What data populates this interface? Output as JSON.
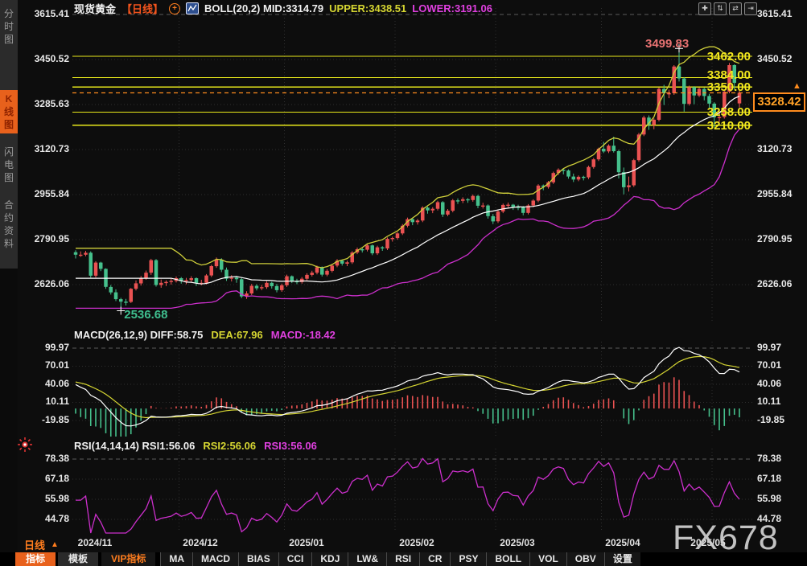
{
  "window": {
    "watermark": "FX678"
  },
  "colors": {
    "up": "#ea5252",
    "down": "#45c08c",
    "boll_upper": "#cfcf3a",
    "boll_mid": "#ffffff",
    "boll_lower": "#cc2fcc",
    "diff_line": "#ffffff",
    "dea_line": "#d6d632",
    "rsi_line": "#cc2fcc",
    "level_line": "#e8e81a",
    "level_label": "#f2e71e",
    "price_line": "#ff8c1e",
    "accent": "#e8611c",
    "text_orange": "#ff7d1e",
    "grid": "#2f2f2f",
    "grid_major": "#5c5c5c",
    "high_label": "#e87272",
    "low_label": "#3fbf8f"
  },
  "sidebar": {
    "tabs": [
      {
        "label": "分时图",
        "active": false
      },
      {
        "label": "K线图",
        "active": true
      },
      {
        "label": "闪电图",
        "active": false
      },
      {
        "label": "合约资料",
        "active": false
      }
    ]
  },
  "legend": {
    "symbol": "现货黄金",
    "period_tag": "【日线】",
    "add_icon_glyph": "+",
    "boll_text": "BOLL(20,2) MID:3314.79",
    "upper_text": "UPPER:3438.51",
    "lower_text": "LOWER:3191.06"
  },
  "top_icons": [
    {
      "name": "pan-tool-icon",
      "glyph": "✚"
    },
    {
      "name": "y-axis-zoom-icon",
      "glyph": "⇅"
    },
    {
      "name": "x-axis-zoom-icon",
      "glyph": "⇄"
    },
    {
      "name": "shift-right-icon",
      "glyph": "⇥"
    }
  ],
  "macd_legend": {
    "text": "MACD(26,12,9) DIFF:58.75",
    "dea_text": "DEA:67.96",
    "macd_text": "MACD:-18.42"
  },
  "rsi_legend": {
    "text": "RSI(14,14,14) RSI1:56.06",
    "rsi2_text": "RSI2:56.06",
    "rsi3_text": "RSI3:56.06"
  },
  "price_pointer": {
    "value": "3328.42",
    "arrow": "▲"
  },
  "period_selector": {
    "label": "日线",
    "arrow": "▲"
  },
  "bottom_toolbar": {
    "items": [
      {
        "label": "指标",
        "style": "primary"
      },
      {
        "label": "模板",
        "style": "secondary"
      },
      {
        "label": "VIP指标",
        "style": "vip"
      },
      {
        "label": "MA"
      },
      {
        "label": "MACD"
      },
      {
        "label": "BIAS"
      },
      {
        "label": "CCI"
      },
      {
        "label": "KDJ"
      },
      {
        "label": "LW&"
      },
      {
        "label": "RSI"
      },
      {
        "label": "CR"
      },
      {
        "label": "PSY"
      },
      {
        "label": "BOLL"
      },
      {
        "label": "VOL"
      },
      {
        "label": "OBV"
      },
      {
        "label": "设置"
      }
    ]
  },
  "chart_data": {
    "type": "candlestick",
    "symbol": "现货黄金",
    "period": "日线",
    "x_axis": {
      "labels": [
        "2024/11",
        "2024/12",
        "2025/01",
        "2025/02",
        "2025/03",
        "2025/04",
        "2025/05"
      ],
      "month_start_indices": [
        0,
        21,
        42,
        64,
        84,
        105,
        127
      ]
    },
    "panels": {
      "main": {
        "ticks": [
          3615.41,
          3450.52,
          3285.63,
          3120.73,
          2955.84,
          2790.95,
          2626.06
        ],
        "ylim": [
          2491,
          3639
        ]
      },
      "macd": {
        "ticks": [
          99.97,
          70.01,
          40.06,
          10.11,
          -19.85
        ],
        "ylim": [
          -46.5,
          110.6
        ]
      },
      "rsi": {
        "ticks": [
          78.38,
          67.18,
          55.98,
          44.78
        ],
        "ylim": [
          38.6,
          84.2
        ]
      }
    },
    "levels": [
      {
        "value": 3462,
        "label": "3462.00"
      },
      {
        "value": 3384,
        "label": "3384.00"
      },
      {
        "value": 3350,
        "label": "3350.00"
      },
      {
        "value": 3258,
        "label": "3258.00"
      },
      {
        "value": 3210,
        "label": "3210.00"
      }
    ],
    "current_price": 3328.42,
    "high_marker": {
      "index": 120,
      "price": 3499.83,
      "label": "3499.83"
    },
    "low_marker": {
      "index": 9,
      "price": 2536.68,
      "label": "2536.68"
    },
    "indicators": {
      "boll": {
        "period": 20,
        "mult": 2
      },
      "macd": {
        "fast": 12,
        "slow": 26,
        "signal": 9
      },
      "rsi": {
        "period": 14
      }
    },
    "candles": [
      [
        2745,
        2752,
        2722,
        2736
      ],
      [
        2736,
        2748,
        2728,
        2736
      ],
      [
        2736,
        2750,
        2730,
        2743
      ],
      [
        2743,
        2748,
        2652,
        2659
      ],
      [
        2659,
        2712,
        2652,
        2707
      ],
      [
        2707,
        2710,
        2676,
        2684
      ],
      [
        2684,
        2686,
        2611,
        2618
      ],
      [
        2618,
        2625,
        2590,
        2598
      ],
      [
        2598,
        2609,
        2566,
        2573
      ],
      [
        2573,
        2578,
        2537,
        2564
      ],
      [
        2564,
        2574,
        2550,
        2563
      ],
      [
        2563,
        2614,
        2559,
        2611
      ],
      [
        2611,
        2642,
        2605,
        2631
      ],
      [
        2631,
        2658,
        2623,
        2650
      ],
      [
        2650,
        2678,
        2644,
        2670
      ],
      [
        2670,
        2721,
        2662,
        2716
      ],
      [
        2716,
        2720,
        2619,
        2625
      ],
      [
        2625,
        2645,
        2615,
        2633
      ],
      [
        2633,
        2642,
        2621,
        2636
      ],
      [
        2636,
        2648,
        2626,
        2640
      ],
      [
        2640,
        2656,
        2634,
        2650
      ],
      [
        2650,
        2654,
        2630,
        2639
      ],
      [
        2639,
        2651,
        2628,
        2643
      ],
      [
        2643,
        2657,
        2636,
        2650
      ],
      [
        2650,
        2653,
        2621,
        2632
      ],
      [
        2632,
        2644,
        2624,
        2633
      ],
      [
        2633,
        2665,
        2627,
        2660
      ],
      [
        2660,
        2699,
        2654,
        2694
      ],
      [
        2694,
        2726,
        2688,
        2718
      ],
      [
        2718,
        2723,
        2672,
        2681
      ],
      [
        2681,
        2689,
        2640,
        2648
      ],
      [
        2648,
        2661,
        2638,
        2652
      ],
      [
        2652,
        2658,
        2633,
        2646
      ],
      [
        2646,
        2652,
        2577,
        2583
      ],
      [
        2583,
        2602,
        2574,
        2594
      ],
      [
        2594,
        2629,
        2588,
        2622
      ],
      [
        2622,
        2628,
        2605,
        2613
      ],
      [
        2613,
        2625,
        2606,
        2617
      ],
      [
        2617,
        2639,
        2611,
        2633
      ],
      [
        2633,
        2637,
        2612,
        2621
      ],
      [
        2621,
        2629,
        2598,
        2606
      ],
      [
        2606,
        2630,
        2600,
        2624
      ],
      [
        2624,
        2663,
        2618,
        2657
      ],
      [
        2657,
        2660,
        2632,
        2639
      ],
      [
        2639,
        2648,
        2628,
        2636
      ],
      [
        2636,
        2654,
        2630,
        2648
      ],
      [
        2648,
        2668,
        2642,
        2662
      ],
      [
        2662,
        2677,
        2656,
        2670
      ],
      [
        2670,
        2696,
        2664,
        2690
      ],
      [
        2690,
        2693,
        2656,
        2663
      ],
      [
        2663,
        2683,
        2657,
        2677
      ],
      [
        2677,
        2701,
        2671,
        2696
      ],
      [
        2696,
        2720,
        2690,
        2714
      ],
      [
        2714,
        2718,
        2696,
        2703
      ],
      [
        2703,
        2714,
        2694,
        2708
      ],
      [
        2708,
        2749,
        2702,
        2744
      ],
      [
        2744,
        2762,
        2738,
        2756
      ],
      [
        2756,
        2761,
        2744,
        2754
      ],
      [
        2754,
        2776,
        2748,
        2770
      ],
      [
        2770,
        2773,
        2734,
        2741
      ],
      [
        2741,
        2769,
        2735,
        2763
      ],
      [
        2763,
        2767,
        2750,
        2759
      ],
      [
        2759,
        2799,
        2753,
        2794
      ],
      [
        2794,
        2802,
        2784,
        2797
      ],
      [
        2797,
        2819,
        2791,
        2814
      ],
      [
        2814,
        2848,
        2808,
        2842
      ],
      [
        2842,
        2872,
        2836,
        2866
      ],
      [
        2866,
        2870,
        2844,
        2855
      ],
      [
        2855,
        2867,
        2846,
        2861
      ],
      [
        2861,
        2913,
        2855,
        2908
      ],
      [
        2908,
        2912,
        2886,
        2898
      ],
      [
        2898,
        2910,
        2888,
        2904
      ],
      [
        2904,
        2933,
        2898,
        2928
      ],
      [
        2928,
        2932,
        2874,
        2883
      ],
      [
        2883,
        2903,
        2877,
        2897
      ],
      [
        2897,
        2940,
        2891,
        2935
      ],
      [
        2935,
        2942,
        2922,
        2933
      ],
      [
        2933,
        2946,
        2925,
        2939
      ],
      [
        2939,
        2943,
        2926,
        2936
      ],
      [
        2936,
        2956,
        2930,
        2951
      ],
      [
        2951,
        2955,
        2906,
        2915
      ],
      [
        2915,
        2926,
        2905,
        2916
      ],
      [
        2916,
        2920,
        2868,
        2877
      ],
      [
        2877,
        2885,
        2848,
        2858
      ],
      [
        2858,
        2899,
        2852,
        2894
      ],
      [
        2894,
        2923,
        2888,
        2918
      ],
      [
        2918,
        2927,
        2908,
        2919
      ],
      [
        2919,
        2922,
        2900,
        2911
      ],
      [
        2911,
        2919,
        2899,
        2910
      ],
      [
        2910,
        2914,
        2880,
        2889
      ],
      [
        2889,
        2921,
        2883,
        2916
      ],
      [
        2916,
        2939,
        2910,
        2934
      ],
      [
        2934,
        2994,
        2928,
        2989
      ],
      [
        2989,
        2993,
        2972,
        2984
      ],
      [
        2984,
        3006,
        2978,
        3001
      ],
      [
        3001,
        3040,
        2995,
        3035
      ],
      [
        3035,
        3052,
        3028,
        3047
      ],
      [
        3047,
        3051,
        3030,
        3044
      ],
      [
        3044,
        3048,
        3014,
        3022
      ],
      [
        3022,
        3033,
        3002,
        3011
      ],
      [
        3011,
        3026,
        3005,
        3021
      ],
      [
        3021,
        3025,
        3008,
        3019
      ],
      [
        3019,
        3062,
        3013,
        3057
      ],
      [
        3057,
        3090,
        3051,
        3085
      ],
      [
        3085,
        3128,
        3079,
        3124
      ],
      [
        3124,
        3149,
        3108,
        3114
      ],
      [
        3114,
        3140,
        3108,
        3135
      ],
      [
        3135,
        3168,
        3110,
        3115
      ],
      [
        3115,
        3120,
        3015,
        3038
      ],
      [
        3038,
        3055,
        2957,
        2983
      ],
      [
        2983,
        3022,
        2967,
        2990
      ],
      [
        2990,
        3087,
        2984,
        3082
      ],
      [
        3082,
        3182,
        3076,
        3176
      ],
      [
        3176,
        3245,
        3170,
        3238
      ],
      [
        3238,
        3246,
        3193,
        3211
      ],
      [
        3211,
        3235,
        3195,
        3230
      ],
      [
        3230,
        3348,
        3224,
        3343
      ],
      [
        3343,
        3358,
        3284,
        3327
      ],
      [
        3327,
        3340,
        3309,
        3327
      ],
      [
        3327,
        3430,
        3321,
        3425
      ],
      [
        3425,
        3500,
        3370,
        3381
      ],
      [
        3381,
        3386,
        3260,
        3288
      ],
      [
        3288,
        3355,
        3282,
        3349
      ],
      [
        3349,
        3353,
        3287,
        3319
      ],
      [
        3319,
        3348,
        3313,
        3343
      ],
      [
        3343,
        3347,
        3301,
        3317
      ],
      [
        3317,
        3325,
        3274,
        3289
      ],
      [
        3289,
        3294,
        3202,
        3239
      ],
      [
        3239,
        3270,
        3222,
        3240
      ],
      [
        3240,
        3338,
        3234,
        3333
      ],
      [
        3333,
        3438,
        3327,
        3430
      ],
      [
        3430,
        3433,
        3340,
        3365
      ],
      [
        3290,
        3342,
        3275,
        3328.42
      ]
    ]
  }
}
